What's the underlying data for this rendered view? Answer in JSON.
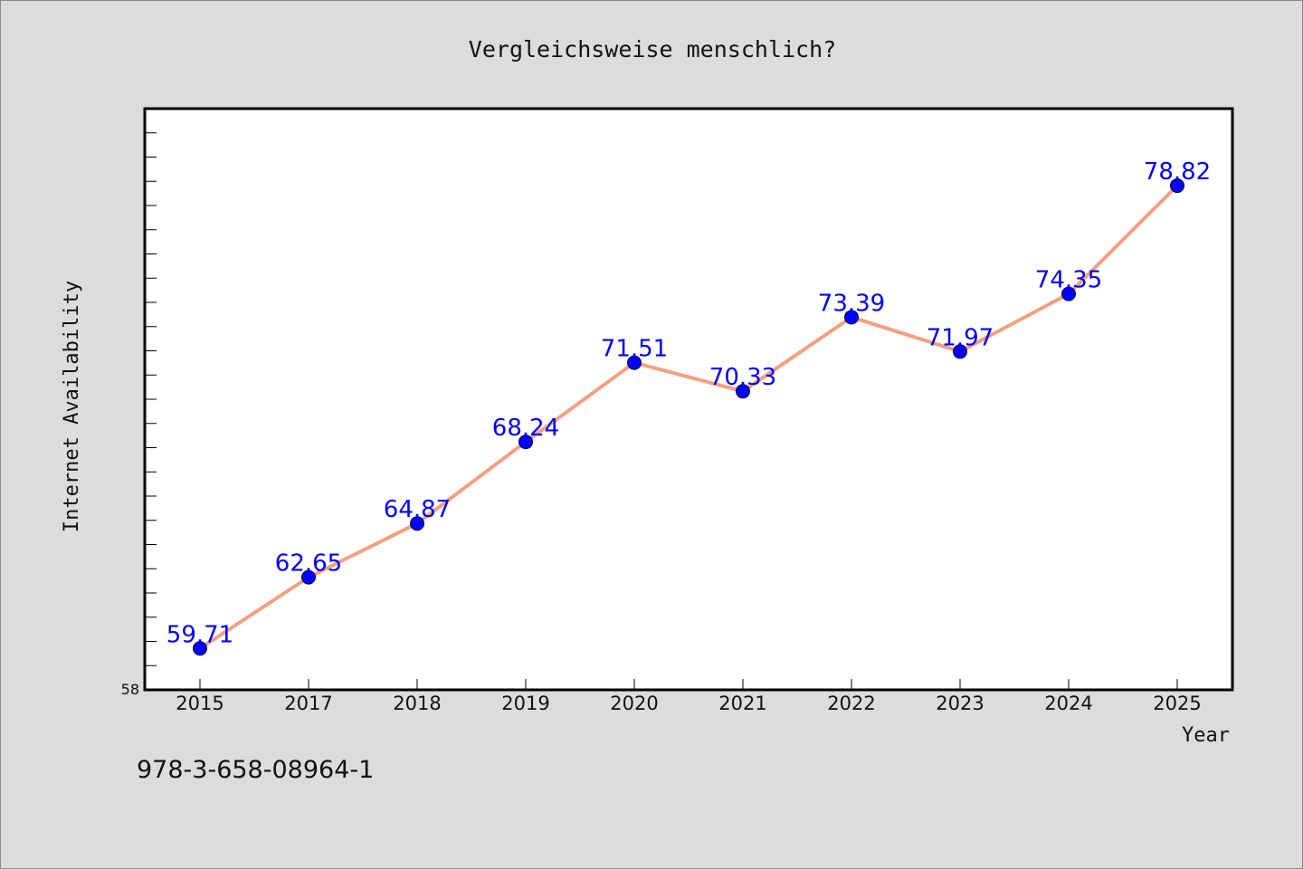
{
  "chart_data": {
    "type": "line",
    "title": "Vergleichsweise menschlich?",
    "xlabel": "Year",
    "ylabel": "Internet Availability",
    "x": [
      "2015",
      "2017",
      "2018",
      "2019",
      "2020",
      "2021",
      "2022",
      "2023",
      "2024",
      "2025"
    ],
    "series": [
      {
        "values": [
          59.71,
          62.65,
          64.87,
          68.24,
          71.51,
          70.33,
          73.39,
          71.97,
          74.35,
          78.82
        ],
        "labels": [
          "59.71",
          "62.65",
          "64.87",
          "68.24",
          "71.51",
          "70.33",
          "73.39",
          "71.97",
          "74.35",
          "78.82"
        ],
        "line_color": "#f4a080",
        "marker_color": "#0000ff",
        "label_color": "#0000ff"
      }
    ],
    "ylim": [
      58,
      82
    ],
    "y_tick_labels": [
      "58"
    ],
    "y_minor_step": 1,
    "grid": false,
    "legend": "none"
  },
  "footer": {
    "code": "978-3-658-08964-1"
  },
  "colors": {
    "background": "#dcdcdc",
    "plot_background": "#ffffff",
    "axis": "#000000"
  }
}
